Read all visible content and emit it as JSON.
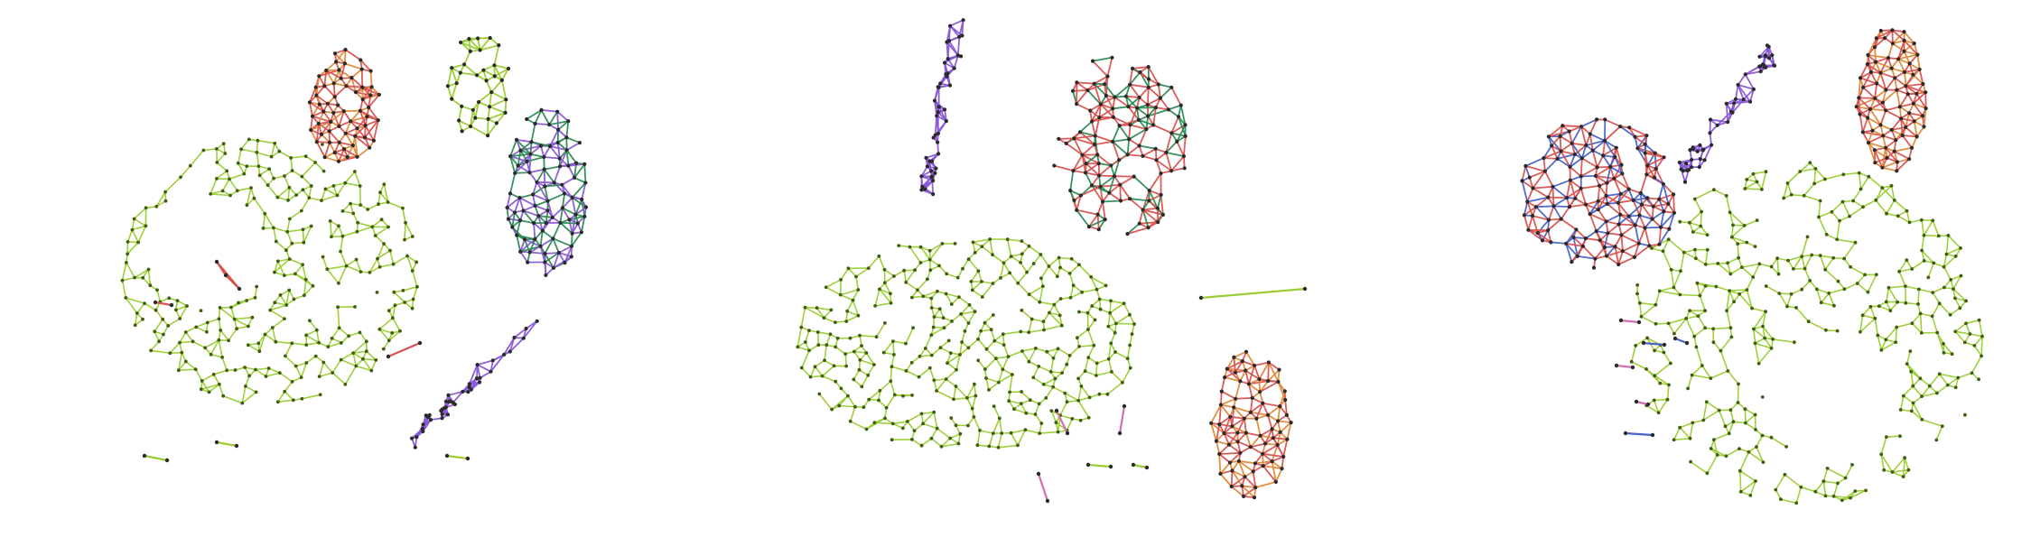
{
  "figure": {
    "panel_count": 3,
    "background": "#ffffff",
    "palette": {
      "green": "#9acd32",
      "green_node": "#3f5f10",
      "red": "#d9534f",
      "orange": "#e08a3a",
      "violet": "#8a5ad6",
      "blue": "#4a63c8",
      "pink": "#d46fb0",
      "teal": "#2e8b57",
      "node_dark": "#2a2a2a"
    },
    "panels": [
      {
        "components": [
          {
            "kind": "giant",
            "color": "green",
            "density": 1.0
          },
          {
            "kind": "cluster",
            "color": "red",
            "secondary": "orange",
            "density": 1.4
          },
          {
            "kind": "cluster",
            "color": "green",
            "density": 0.6
          },
          {
            "kind": "cluster",
            "color": "violet",
            "secondary": "teal",
            "density": 1.6
          },
          {
            "kind": "chain",
            "color": "violet",
            "density": 1.5
          },
          {
            "kind": "fragment",
            "color": "red"
          },
          {
            "kind": "fragment",
            "color": "green"
          }
        ]
      },
      {
        "components": [
          {
            "kind": "giant",
            "color": "green",
            "density": 1.1
          },
          {
            "kind": "chain",
            "color": "violet",
            "density": 1.3
          },
          {
            "kind": "cluster",
            "color": "red",
            "secondary": "teal",
            "density": 1.5
          },
          {
            "kind": "cluster",
            "color": "red",
            "secondary": "orange",
            "density": 1.5
          },
          {
            "kind": "fragment",
            "color": "pink"
          },
          {
            "kind": "fragment",
            "color": "green"
          }
        ]
      },
      {
        "components": [
          {
            "kind": "giant",
            "color": "green",
            "density": 1.0
          },
          {
            "kind": "cluster",
            "color": "red",
            "secondary": "blue",
            "density": 1.6
          },
          {
            "kind": "chain",
            "color": "violet",
            "density": 1.3
          },
          {
            "kind": "cluster",
            "color": "red",
            "secondary": "orange",
            "density": 1.5
          },
          {
            "kind": "fragment",
            "color": "pink"
          },
          {
            "kind": "fragment",
            "color": "blue"
          }
        ]
      }
    ]
  }
}
